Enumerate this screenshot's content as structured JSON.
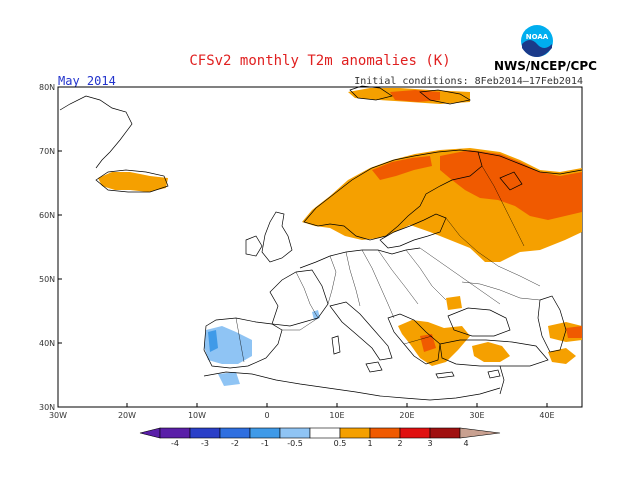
{
  "title": "CFSv2 monthly T2m anomalies (K)",
  "month": "May 2014",
  "initial_conditions": "Initial conditions: 8Feb2014–17Feb2014",
  "organization": "NWS/NCEP/CPC",
  "logo_text": "NOAA",
  "lat_labels": [
    "80N",
    "70N",
    "60N",
    "50N",
    "40N",
    "30N"
  ],
  "lon_labels": [
    "30W",
    "20W",
    "10W",
    "0",
    "10E",
    "20E",
    "30E",
    "40E"
  ],
  "colorbar": {
    "labels": [
      "-4",
      "-3",
      "-2",
      "-1",
      "-0.5",
      "0.5",
      "1",
      "2",
      "3",
      "4"
    ],
    "colors": [
      "#5a1fa8",
      "#2a3fc8",
      "#2f6fe0",
      "#3f9ae8",
      "#8fc4f4",
      "#ffffff",
      "#f5a000",
      "#f05a00",
      "#e01010",
      "#a01010",
      "#c8a090"
    ]
  },
  "colors": {
    "orange": "#f5a000",
    "red_orange": "#f05a00",
    "light_blue": "#8fc4f4",
    "title_red": "#e02020",
    "month_blue": "#2233cc"
  }
}
